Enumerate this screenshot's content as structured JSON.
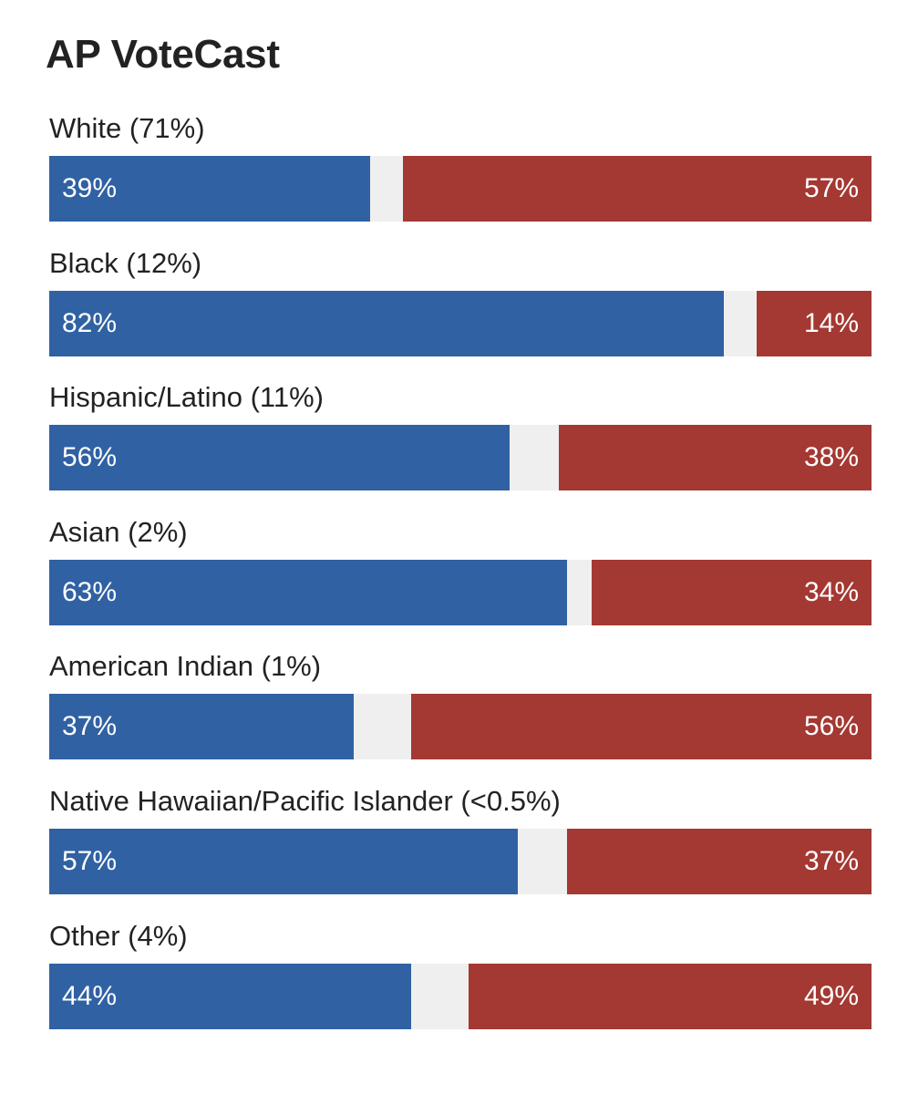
{
  "chart_data": {
    "type": "bar",
    "stacked": true,
    "orientation": "horizontal",
    "title": "AP VoteCast",
    "xlim": [
      0,
      100
    ],
    "categories": [
      "White (71%)",
      "Black (12%)",
      "Hispanic/Latino (11%)",
      "Asian (2%)",
      "American Indian (1%)",
      "Native Hawaiian/Pacific Islander (<0.5%)",
      "Other (4%)"
    ],
    "series": [
      {
        "color": "#3061a3",
        "values": [
          39,
          82,
          56,
          63,
          37,
          57,
          44
        ],
        "labels": [
          "39%",
          "82%",
          "56%",
          "63%",
          "37%",
          "57%",
          "44%"
        ]
      },
      {
        "color": "#a43832",
        "values": [
          57,
          14,
          38,
          34,
          56,
          37,
          49
        ],
        "labels": [
          "57%",
          "14%",
          "38%",
          "34%",
          "56%",
          "37%",
          "49%"
        ]
      }
    ],
    "remainder_color": "#efefef",
    "grid": false,
    "legend": "none"
  }
}
